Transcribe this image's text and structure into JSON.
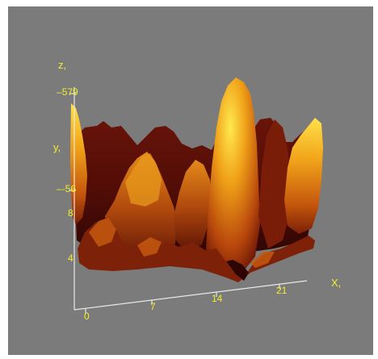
{
  "axes": {
    "x_label": "X,",
    "y_label": "y,",
    "z_label": "z,",
    "z_max": "579",
    "z_mid": "-56",
    "y_ticks": [
      "8",
      "4"
    ],
    "x_ticks": [
      "0",
      "7",
      "14",
      "21"
    ]
  },
  "colors": {
    "background": "#7b7b7b",
    "axis": "#e8e8e8",
    "label": "#f2ee2a",
    "surface_dark": "#4a0a05",
    "surface_mid": "#b4400c",
    "surface_bright": "#f5c81e"
  }
}
